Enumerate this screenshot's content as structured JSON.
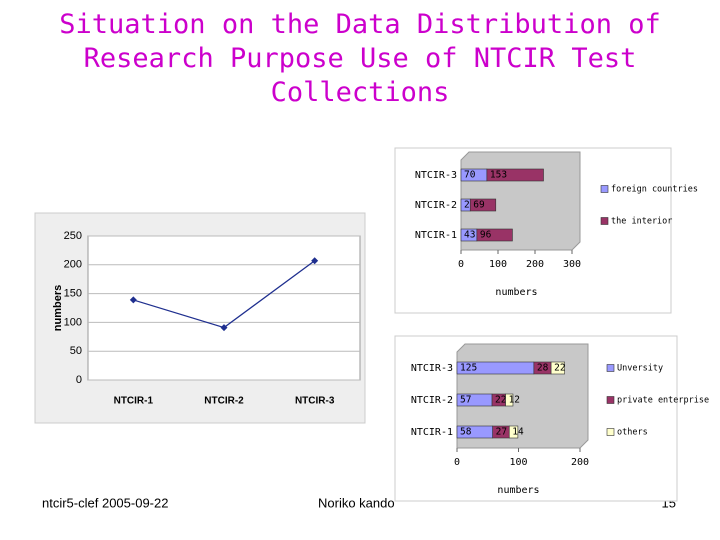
{
  "slide": {
    "title": "Situation on the Data Distribution of Research Purpose Use of NTCIR Test Collections",
    "footer_left": "ntcir5-clef  2005-09-22",
    "footer_center": "Noriko kando",
    "page_number": "15"
  },
  "chart_data": [
    {
      "type": "line",
      "categories": [
        "NTCIR-1",
        "NTCIR-2",
        "NTCIR-3"
      ],
      "values": [
        139,
        91,
        207
      ],
      "color": "#1f2f8f",
      "y_label": "numbers",
      "ylim": [
        0,
        250
      ],
      "yticks": [
        0,
        50,
        100,
        150,
        200,
        250
      ],
      "grid": true
    },
    {
      "type": "bar",
      "orientation": "horizontal",
      "stacked": true,
      "categories": [
        "NTCIR-3",
        "NTCIR-2",
        "NTCIR-1"
      ],
      "series": [
        {
          "name": "foreign countries",
          "color": "#9999ff",
          "values": [
            70,
            25,
            43
          ]
        },
        {
          "name": "the interior",
          "color": "#993366",
          "values": [
            153,
            69,
            96
          ]
        }
      ],
      "x_label": "numbers",
      "xlim": [
        0,
        300
      ],
      "xticks": [
        0,
        100,
        200,
        300
      ],
      "grid": false,
      "legend": "right"
    },
    {
      "type": "bar",
      "orientation": "horizontal",
      "stacked": true,
      "categories": [
        "NTCIR-3",
        "NTCIR-2",
        "NTCIR-1"
      ],
      "series": [
        {
          "name": "Unversity",
          "color": "#9999ff",
          "values": [
            125,
            57,
            58
          ]
        },
        {
          "name": "private enterprise",
          "color": "#993366",
          "values": [
            28,
            22,
            27
          ]
        },
        {
          "name": "others",
          "color": "#ffffcc",
          "values": [
            22,
            12,
            14
          ]
        }
      ],
      "x_label": "numbers",
      "xlim": [
        0,
        200
      ],
      "xticks": [
        0,
        100,
        200
      ],
      "grid": false,
      "legend": "right"
    }
  ]
}
